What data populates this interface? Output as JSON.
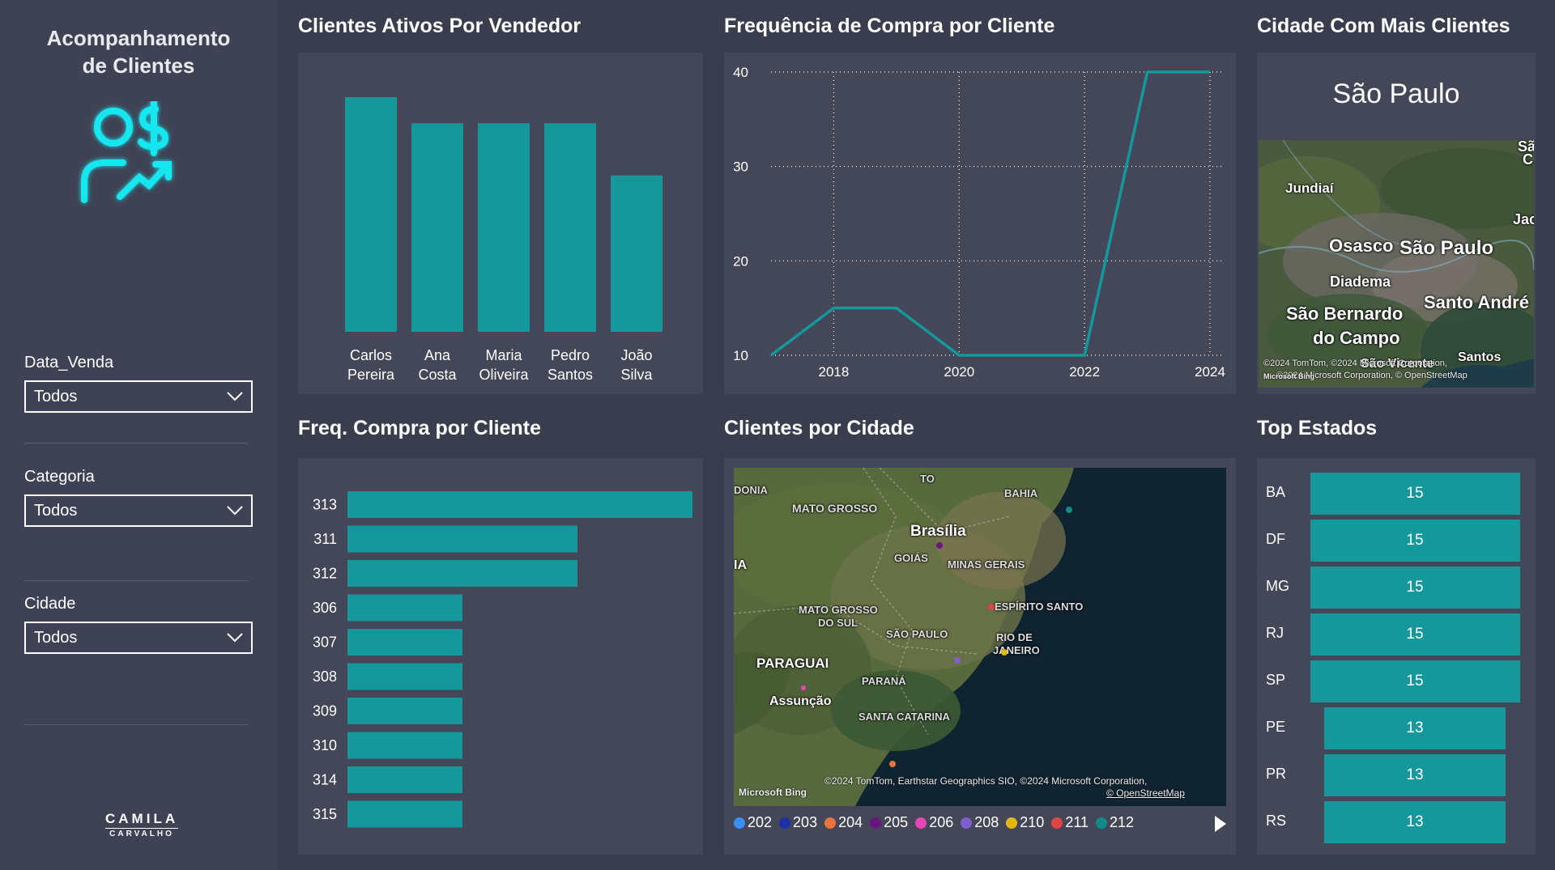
{
  "sidebar": {
    "title_line1": "Acompanhamento",
    "title_line2": "de Clientes",
    "icon": "customer-money-growth-icon",
    "slicers": [
      {
        "label": "Data_Venda",
        "value": "Todos"
      },
      {
        "label": "Categoria",
        "value": "Todos"
      },
      {
        "label": "Cidade",
        "value": "Todos"
      }
    ],
    "brand_line1": "CAMILA",
    "brand_line2": "CARVALHO"
  },
  "visuals": {
    "vendedor_title": "Clientes Ativos Por Vendedor",
    "frequencia_title": "Frequência de Compra por Cliente",
    "cidade_top_title": "Cidade Com Mais Clientes",
    "freq_cliente_title": "Freq. Compra por Cliente",
    "clientes_cidade_title": "Clientes por Cidade",
    "top_estados_title": "Top Estados"
  },
  "cidade_top": {
    "value": "São Paulo",
    "map_labels": [
      "Jundiaí",
      "Osasco",
      "São Paulo",
      "Diadema",
      "Santo André",
      "São Bernardo",
      "do Campo",
      "Santos",
      "São Vicente",
      "Jac",
      "São",
      "C"
    ],
    "copyright1": "©2024 TomTom, ©2024 Microsoft Corporation,",
    "copyright2": "©2024 Microsoft Corporation, © OpenStreetMap",
    "bing": "Microsoft Bing"
  },
  "clientes_cidade": {
    "map_labels": [
      "DONIA",
      "TO",
      "BAHIA",
      "MATO GROSSO",
      "Brasília",
      "GOIÁS",
      "MINAS GERAIS",
      "IA",
      "ESPÍRITO SANTO",
      "MATO GROSSO",
      "DO SUL",
      "SÃO PAULO",
      "RIO DE",
      "JANEIRO",
      "PARAGUAI",
      "PARANÁ",
      "Assunção",
      "SANTA CATARINA"
    ],
    "copyright": "©2024 TomTom, Earthstar Geographics SIO, ©2024 Microsoft Corporation,",
    "osm": "© OpenStreetMap",
    "bing": "Microsoft Bing",
    "legend": [
      {
        "label": "202",
        "color": "#3a8ef0"
      },
      {
        "label": "203",
        "color": "#1f2fa8"
      },
      {
        "label": "204",
        "color": "#e8743b"
      },
      {
        "label": "205",
        "color": "#6b1680"
      },
      {
        "label": "206",
        "color": "#e347b5"
      },
      {
        "label": "208",
        "color": "#7f5fd0"
      },
      {
        "label": "210",
        "color": "#e6b619"
      },
      {
        "label": "211",
        "color": "#e04545"
      },
      {
        "label": "212",
        "color": "#128a8a"
      }
    ],
    "next_icon": "play-next-icon"
  },
  "top_estados": [
    {
      "label": "BA",
      "value": "15",
      "num": 15
    },
    {
      "label": "DF",
      "value": "15",
      "num": 15
    },
    {
      "label": "MG",
      "value": "15",
      "num": 15
    },
    {
      "label": "RJ",
      "value": "15",
      "num": 15
    },
    {
      "label": "SP",
      "value": "15",
      "num": 15
    },
    {
      "label": "PE",
      "value": "13",
      "num": 13
    },
    {
      "label": "PR",
      "value": "13",
      "num": 13
    },
    {
      "label": "RS",
      "value": "13",
      "num": 13
    }
  ],
  "colors": {
    "accent": "#14989c",
    "bg": "#3a3d4d",
    "card": "#444757",
    "icon": "#19e6f0"
  },
  "chart_data": [
    {
      "type": "bar",
      "title": "Clientes Ativos Por Vendedor",
      "categories": [
        [
          "Carlos",
          "Pereira"
        ],
        [
          "Ana",
          "Costa"
        ],
        [
          "Maria",
          "Oliveira"
        ],
        [
          "Pedro",
          "Santos"
        ],
        [
          "João",
          "Silva"
        ]
      ],
      "values": [
        18,
        16,
        16,
        16,
        12
      ]
    },
    {
      "type": "line",
      "title": "Frequência de Compra por Cliente",
      "x": [
        2017,
        2018,
        2019,
        2020,
        2021,
        2022,
        2023,
        2024
      ],
      "values": [
        10,
        15,
        15,
        10,
        10,
        10,
        40,
        40
      ],
      "xticks": [
        2018,
        2020,
        2022,
        2024
      ],
      "yticks": [
        10,
        20,
        30,
        40
      ],
      "ylim": [
        10,
        40
      ],
      "grid": true
    },
    {
      "type": "bar",
      "orientation": "horizontal",
      "title": "Freq. Compra por Cliente",
      "categories": [
        "313",
        "311",
        "312",
        "306",
        "307",
        "308",
        "309",
        "310",
        "314",
        "315"
      ],
      "values": [
        3,
        2,
        2,
        1,
        1,
        1,
        1,
        1,
        1,
        1
      ]
    }
  ]
}
